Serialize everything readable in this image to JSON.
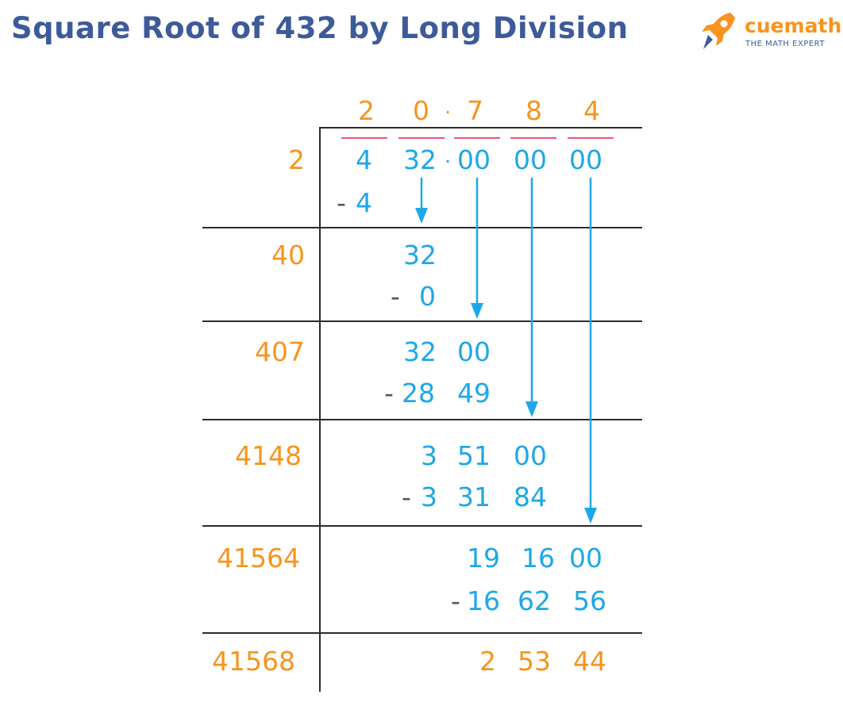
{
  "title": "Square Root of 432 by Long Division",
  "brand": {
    "name": "cuemath",
    "tagline": "THE MATH EXPERT",
    "accent": "#f7941d",
    "primary": "#3d5a99",
    "rocket_icon": "rocket-icon"
  },
  "colors": {
    "quotient": "#f7941d",
    "dividend": "#1ea7e8",
    "pair_bar": "#ef5674",
    "minus": "#555555"
  },
  "quotient": [
    "2",
    "0",
    ".",
    "7",
    "8",
    "4"
  ],
  "dividend": [
    "4",
    "32",
    ".",
    "00",
    "00",
    "00"
  ],
  "steps": [
    {
      "divisor": "2",
      "sub": [
        "-",
        "4"
      ]
    },
    {
      "divisor": "40",
      "rem": [
        "32"
      ],
      "sub": [
        "-",
        "0"
      ]
    },
    {
      "divisor": "407",
      "rem": [
        "32",
        "00"
      ],
      "sub": [
        "-",
        "28",
        "49"
      ]
    },
    {
      "divisor": "4148",
      "rem": [
        "3",
        "51",
        "00"
      ],
      "sub": [
        "-",
        "3",
        "31",
        "84"
      ]
    },
    {
      "divisor": "41564",
      "rem": [
        "19",
        "16",
        "00"
      ],
      "sub": [
        "-",
        "16",
        "62",
        "56"
      ]
    },
    {
      "divisor": "41568",
      "rem": [
        "2",
        "53",
        "44"
      ]
    }
  ]
}
